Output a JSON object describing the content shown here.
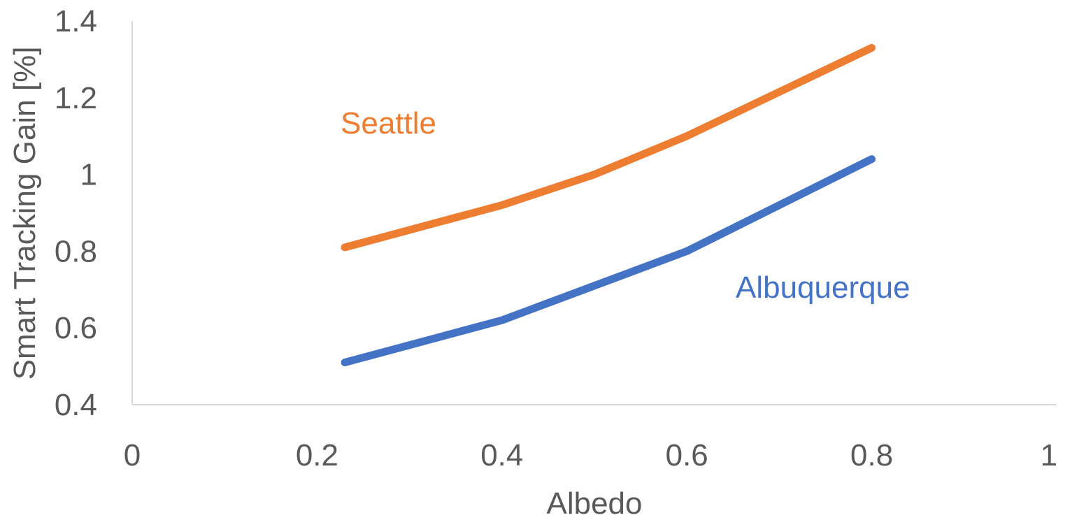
{
  "chart_data": {
    "type": "line",
    "title": "",
    "xlabel": "Albedo",
    "ylabel": "Smart Tracking Gain [%]",
    "xlim": [
      0,
      1
    ],
    "ylim": [
      0.4,
      1.4
    ],
    "x_ticks": [
      "0",
      "0.2",
      "0.4",
      "0.6",
      "0.8",
      "1"
    ],
    "y_ticks": [
      "0.4",
      "0.6",
      "0.8",
      "1",
      "1.2",
      "1.4"
    ],
    "grid": false,
    "legend": "none",
    "series": [
      {
        "name": "Seattle",
        "color": "#ED7D31",
        "x": [
          0.23,
          0.4,
          0.5,
          0.6,
          0.8
        ],
        "y": [
          0.81,
          0.92,
          1.0,
          1.1,
          1.33
        ]
      },
      {
        "name": "Albuquerque",
        "color": "#4472C4",
        "x": [
          0.23,
          0.4,
          0.5,
          0.6,
          0.8
        ],
        "y": [
          0.51,
          0.62,
          0.71,
          0.8,
          1.04
        ]
      }
    ]
  }
}
